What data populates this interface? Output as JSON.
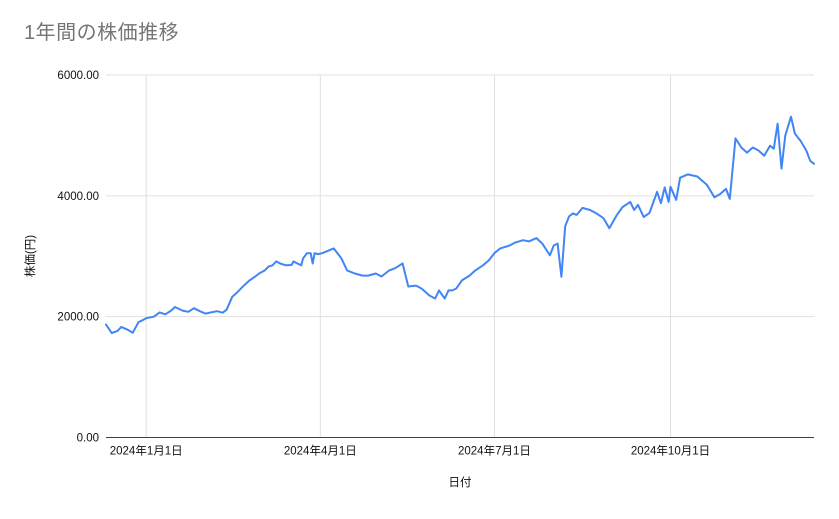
{
  "chart_data": {
    "type": "line",
    "title": "1年間の株価推移",
    "xlabel": "日付",
    "ylabel": "株価(円)",
    "legend": "none",
    "grid": true,
    "x_type": "date",
    "x_domain": [
      "2023-12-11",
      "2024-12-15"
    ],
    "ylim": [
      0,
      6000
    ],
    "y_ticks": [
      {
        "value": 0,
        "label": "0.00"
      },
      {
        "value": 2000,
        "label": "2000.00"
      },
      {
        "value": 4000,
        "label": "4000.00"
      },
      {
        "value": 6000,
        "label": "6000.00"
      }
    ],
    "x_ticks": [
      {
        "date": "2024-01-01",
        "label": "2024年1月1日"
      },
      {
        "date": "2024-04-01",
        "label": "2024年4月1日"
      },
      {
        "date": "2024-07-01",
        "label": "2024年7月1日"
      },
      {
        "date": "2024-10-01",
        "label": "2024年10月1日"
      }
    ],
    "colors": {
      "line": "#4285f4",
      "title": "#757575",
      "grid": "#e0e0e0",
      "axis_line": "#424242",
      "tick_text": "#111111"
    },
    "series": [
      {
        "name": "株価",
        "points": [
          [
            "2023-12-11",
            1870
          ],
          [
            "2023-12-14",
            1730
          ],
          [
            "2023-12-17",
            1765
          ],
          [
            "2023-12-19",
            1830
          ],
          [
            "2023-12-22",
            1790
          ],
          [
            "2023-12-25",
            1735
          ],
          [
            "2023-12-28",
            1910
          ],
          [
            "2023-12-30",
            1940
          ],
          [
            "2024-01-01",
            1975
          ],
          [
            "2024-01-05",
            2000
          ],
          [
            "2024-01-08",
            2070
          ],
          [
            "2024-01-11",
            2040
          ],
          [
            "2024-01-14",
            2100
          ],
          [
            "2024-01-16",
            2160
          ],
          [
            "2024-01-20",
            2100
          ],
          [
            "2024-01-23",
            2080
          ],
          [
            "2024-01-26",
            2140
          ],
          [
            "2024-01-29",
            2090
          ],
          [
            "2024-02-01",
            2050
          ],
          [
            "2024-02-04",
            2070
          ],
          [
            "2024-02-07",
            2090
          ],
          [
            "2024-02-10",
            2065
          ],
          [
            "2024-02-12",
            2115
          ],
          [
            "2024-02-15",
            2330
          ],
          [
            "2024-02-17",
            2385
          ],
          [
            "2024-02-21",
            2515
          ],
          [
            "2024-02-24",
            2600
          ],
          [
            "2024-02-27",
            2665
          ],
          [
            "2024-02-29",
            2715
          ],
          [
            "2024-03-03",
            2765
          ],
          [
            "2024-03-05",
            2830
          ],
          [
            "2024-03-07",
            2850
          ],
          [
            "2024-03-09",
            2915
          ],
          [
            "2024-03-11",
            2880
          ],
          [
            "2024-03-14",
            2850
          ],
          [
            "2024-03-17",
            2855
          ],
          [
            "2024-03-18",
            2915
          ],
          [
            "2024-03-20",
            2880
          ],
          [
            "2024-03-22",
            2850
          ],
          [
            "2024-03-23",
            2965
          ],
          [
            "2024-03-25",
            3050
          ],
          [
            "2024-03-27",
            3050
          ],
          [
            "2024-03-28",
            2880
          ],
          [
            "2024-03-29",
            3050
          ],
          [
            "2024-03-31",
            3035
          ],
          [
            "2024-04-02",
            3050
          ],
          [
            "2024-04-08",
            3130
          ],
          [
            "2024-04-12",
            2965
          ],
          [
            "2024-04-15",
            2765
          ],
          [
            "2024-04-19",
            2715
          ],
          [
            "2024-04-23",
            2680
          ],
          [
            "2024-04-26",
            2680
          ],
          [
            "2024-04-30",
            2715
          ],
          [
            "2024-05-03",
            2665
          ],
          [
            "2024-05-07",
            2765
          ],
          [
            "2024-05-10",
            2800
          ],
          [
            "2024-05-14",
            2880
          ],
          [
            "2024-05-17",
            2500
          ],
          [
            "2024-05-21",
            2515
          ],
          [
            "2024-05-24",
            2465
          ],
          [
            "2024-05-28",
            2350
          ],
          [
            "2024-05-31",
            2300
          ],
          [
            "2024-06-02",
            2435
          ],
          [
            "2024-06-05",
            2300
          ],
          [
            "2024-06-07",
            2435
          ],
          [
            "2024-06-09",
            2435
          ],
          [
            "2024-06-11",
            2465
          ],
          [
            "2024-06-14",
            2600
          ],
          [
            "2024-06-18",
            2680
          ],
          [
            "2024-06-21",
            2765
          ],
          [
            "2024-06-25",
            2850
          ],
          [
            "2024-06-28",
            2930
          ],
          [
            "2024-07-01",
            3050
          ],
          [
            "2024-07-04",
            3130
          ],
          [
            "2024-07-09",
            3180
          ],
          [
            "2024-07-12",
            3230
          ],
          [
            "2024-07-16",
            3265
          ],
          [
            "2024-07-19",
            3245
          ],
          [
            "2024-07-23",
            3300
          ],
          [
            "2024-07-26",
            3210
          ],
          [
            "2024-07-30",
            3015
          ],
          [
            "2024-08-01",
            3180
          ],
          [
            "2024-08-03",
            3210
          ],
          [
            "2024-08-05",
            2660
          ],
          [
            "2024-08-07",
            3495
          ],
          [
            "2024-08-09",
            3660
          ],
          [
            "2024-08-11",
            3710
          ],
          [
            "2024-08-13",
            3685
          ],
          [
            "2024-08-16",
            3800
          ],
          [
            "2024-08-20",
            3765
          ],
          [
            "2024-08-23",
            3715
          ],
          [
            "2024-08-27",
            3630
          ],
          [
            "2024-08-30",
            3465
          ],
          [
            "2024-09-03",
            3685
          ],
          [
            "2024-09-06",
            3815
          ],
          [
            "2024-09-10",
            3900
          ],
          [
            "2024-09-12",
            3765
          ],
          [
            "2024-09-14",
            3850
          ],
          [
            "2024-09-17",
            3650
          ],
          [
            "2024-09-20",
            3715
          ],
          [
            "2024-09-24",
            4065
          ],
          [
            "2024-09-26",
            3880
          ],
          [
            "2024-09-28",
            4140
          ],
          [
            "2024-09-30",
            3900
          ],
          [
            "2024-10-01",
            4150
          ],
          [
            "2024-10-04",
            3935
          ],
          [
            "2024-10-06",
            4300
          ],
          [
            "2024-10-10",
            4355
          ],
          [
            "2024-10-15",
            4320
          ],
          [
            "2024-10-20",
            4185
          ],
          [
            "2024-10-24",
            3975
          ],
          [
            "2024-10-27",
            4030
          ],
          [
            "2024-10-30",
            4115
          ],
          [
            "2024-11-01",
            3950
          ],
          [
            "2024-11-04",
            4950
          ],
          [
            "2024-11-07",
            4800
          ],
          [
            "2024-11-10",
            4715
          ],
          [
            "2024-11-13",
            4800
          ],
          [
            "2024-11-16",
            4750
          ],
          [
            "2024-11-19",
            4665
          ],
          [
            "2024-11-22",
            4830
          ],
          [
            "2024-11-24",
            4780
          ],
          [
            "2024-11-26",
            5195
          ],
          [
            "2024-11-28",
            4450
          ],
          [
            "2024-11-30",
            5000
          ],
          [
            "2024-12-03",
            5310
          ],
          [
            "2024-12-05",
            5030
          ],
          [
            "2024-12-08",
            4910
          ],
          [
            "2024-12-11",
            4750
          ],
          [
            "2024-12-13",
            4580
          ],
          [
            "2024-12-15",
            4530
          ]
        ]
      }
    ]
  }
}
